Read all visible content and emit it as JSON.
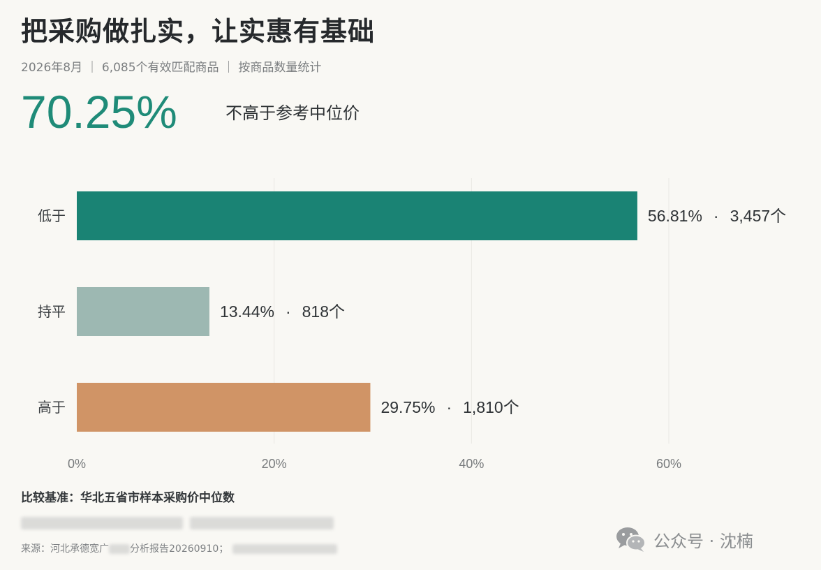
{
  "title": "把采购做扎实，让实惠有基础",
  "subtitle": "2026年8月 ｜ 6,085个有效匹配商品 ｜ 按商品数量统计",
  "headline": {
    "value": "70.25%",
    "label": "不高于参考中位价"
  },
  "chart_data": {
    "type": "bar",
    "orientation": "horizontal",
    "categories": [
      "低于",
      "持平",
      "高于"
    ],
    "values": [
      56.81,
      13.44,
      29.75
    ],
    "value_labels": [
      "56.81%",
      "13.44%",
      "29.75%"
    ],
    "counts": [
      "3,457个",
      "818个",
      "1,810个"
    ],
    "separator": "·",
    "colors": [
      "#1a8374",
      "#9db8b2",
      "#d09466"
    ],
    "x_ticks": [
      0,
      20,
      40,
      60
    ],
    "x_tick_labels": [
      "0%",
      "20%",
      "40%",
      "60%"
    ],
    "xlim": [
      0,
      60
    ],
    "grid": true
  },
  "footnote": "比较基准：华北五省市样本采购价中位数",
  "source": {
    "prefix": "来源：河北承德宽广",
    "suffix": "分析报告20260910；"
  },
  "watermark": {
    "text": "公众号 · 沈楠",
    "icon": "wechat-icon"
  }
}
